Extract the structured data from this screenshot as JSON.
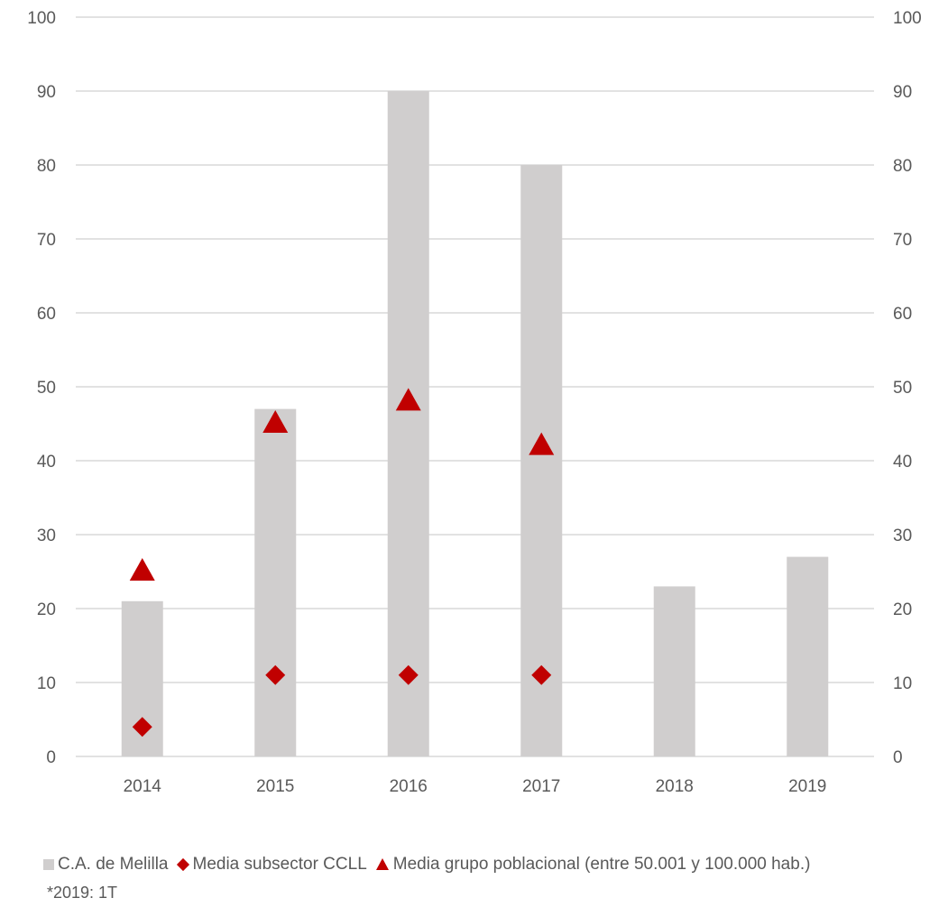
{
  "chart_data": {
    "type": "bar",
    "categories": [
      "2014",
      "2015",
      "2016",
      "2017",
      "2018",
      "2019"
    ],
    "ylim": [
      0,
      100
    ],
    "yticks": [
      "0",
      "10",
      "20",
      "30",
      "40",
      "50",
      "60",
      "70",
      "80",
      "90",
      "100"
    ],
    "secondary_yticks": [
      "0",
      "10",
      "20",
      "30",
      "40",
      "50",
      "60",
      "70",
      "80",
      "90",
      "100"
    ],
    "grid": true,
    "legend_position": "bottom",
    "series": [
      {
        "name": "C.A. de Melilla",
        "kind": "bar",
        "color": "#d0cece",
        "values": [
          21,
          47,
          90,
          80,
          23,
          27
        ]
      },
      {
        "name": "Media subsector CCLL",
        "kind": "diamond",
        "color": "#c00000",
        "values": [
          4,
          11,
          11,
          11,
          null,
          null
        ]
      },
      {
        "name": "Media grupo poblacional (entre 50.001 y 100.000 hab.)",
        "kind": "triangle",
        "color": "#c00000",
        "values": [
          25,
          45,
          48,
          42,
          null,
          null
        ]
      }
    ]
  },
  "legend": {
    "item1": "C.A. de Melilla",
    "item2": "Media subsector CCLL",
    "item3": "Media grupo poblacional (entre 50.001 y 100.000 hab.)"
  },
  "note": "*2019: 1T"
}
